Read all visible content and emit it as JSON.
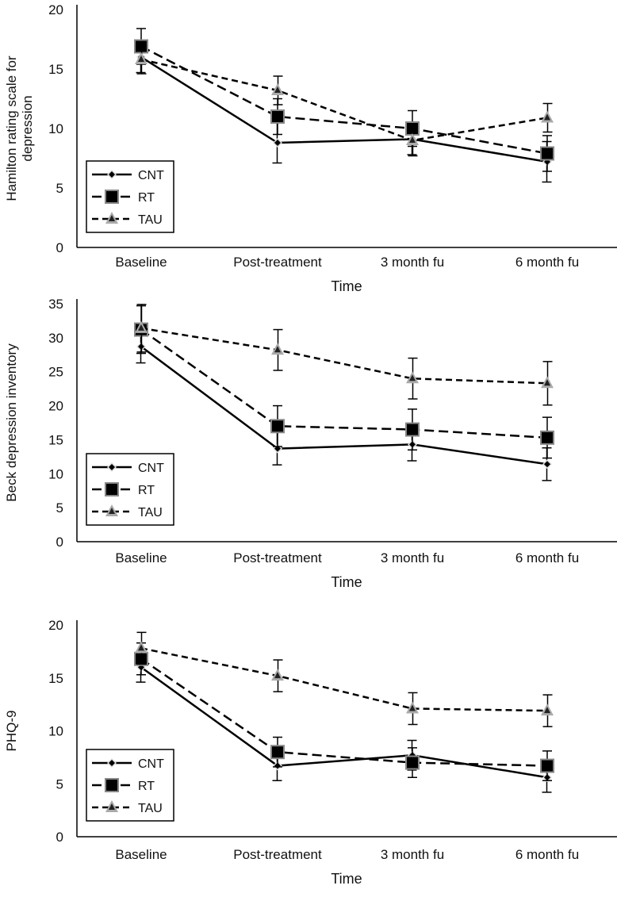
{
  "chart_data": [
    {
      "type": "line",
      "ylabel": "Hamilton rating scale for depression",
      "xlabel": "Time",
      "categories": [
        "Baseline",
        "Post-treatment",
        "3 month fu",
        "6 month fu"
      ],
      "ylim": [
        0,
        20
      ],
      "yticks": [
        0,
        5,
        10,
        15,
        20
      ],
      "legend_position": "bottom-left",
      "series": [
        {
          "name": "CNT",
          "values": [
            16.0,
            8.8,
            9.1,
            7.2
          ],
          "errors": [
            1.3,
            1.7,
            1.3,
            1.7
          ]
        },
        {
          "name": "RT",
          "values": [
            16.9,
            11.0,
            10.0,
            7.9
          ],
          "errors": [
            1.5,
            1.5,
            1.5,
            1.5
          ]
        },
        {
          "name": "TAU",
          "values": [
            15.8,
            13.2,
            9.0,
            10.9
          ],
          "errors": [
            1.2,
            1.2,
            1.3,
            1.2
          ]
        }
      ]
    },
    {
      "type": "line",
      "ylabel": "Beck depression inventory",
      "xlabel": "Time",
      "categories": [
        "Baseline",
        "Post-treatment",
        "3 month fu",
        "6 month fu"
      ],
      "ylim": [
        0,
        35
      ],
      "yticks": [
        0,
        5,
        10,
        15,
        20,
        25,
        30,
        35
      ],
      "legend_position": "bottom-left",
      "series": [
        {
          "name": "CNT",
          "values": [
            28.7,
            13.7,
            14.3,
            11.4
          ],
          "errors": [
            2.4,
            2.4,
            2.4,
            2.4
          ]
        },
        {
          "name": "RT",
          "values": [
            31.2,
            17.0,
            16.5,
            15.3
          ],
          "errors": [
            3.5,
            3.0,
            3.0,
            3.0
          ]
        },
        {
          "name": "TAU",
          "values": [
            31.4,
            28.2,
            24.0,
            23.3
          ],
          "errors": [
            3.5,
            3.0,
            3.0,
            3.2
          ]
        }
      ]
    },
    {
      "type": "line",
      "ylabel": "PHQ-9",
      "xlabel": "Time",
      "categories": [
        "Baseline",
        "Post-treatment",
        "3 month fu",
        "6 month fu"
      ],
      "ylim": [
        0,
        20
      ],
      "yticks": [
        0,
        5,
        10,
        15,
        20
      ],
      "legend_position": "bottom-left",
      "series": [
        {
          "name": "CNT",
          "values": [
            16.0,
            6.7,
            7.7,
            5.6
          ],
          "errors": [
            1.4,
            1.4,
            1.4,
            1.4
          ]
        },
        {
          "name": "RT",
          "values": [
            16.8,
            8.0,
            7.0,
            6.7
          ],
          "errors": [
            1.5,
            1.4,
            1.4,
            1.4
          ]
        },
        {
          "name": "TAU",
          "values": [
            17.8,
            15.2,
            12.1,
            11.9
          ],
          "errors": [
            1.5,
            1.5,
            1.5,
            1.5
          ]
        }
      ]
    }
  ],
  "colors": {
    "line": "#000000",
    "marker_outline": "#999999",
    "tau_marker": "#333333"
  }
}
